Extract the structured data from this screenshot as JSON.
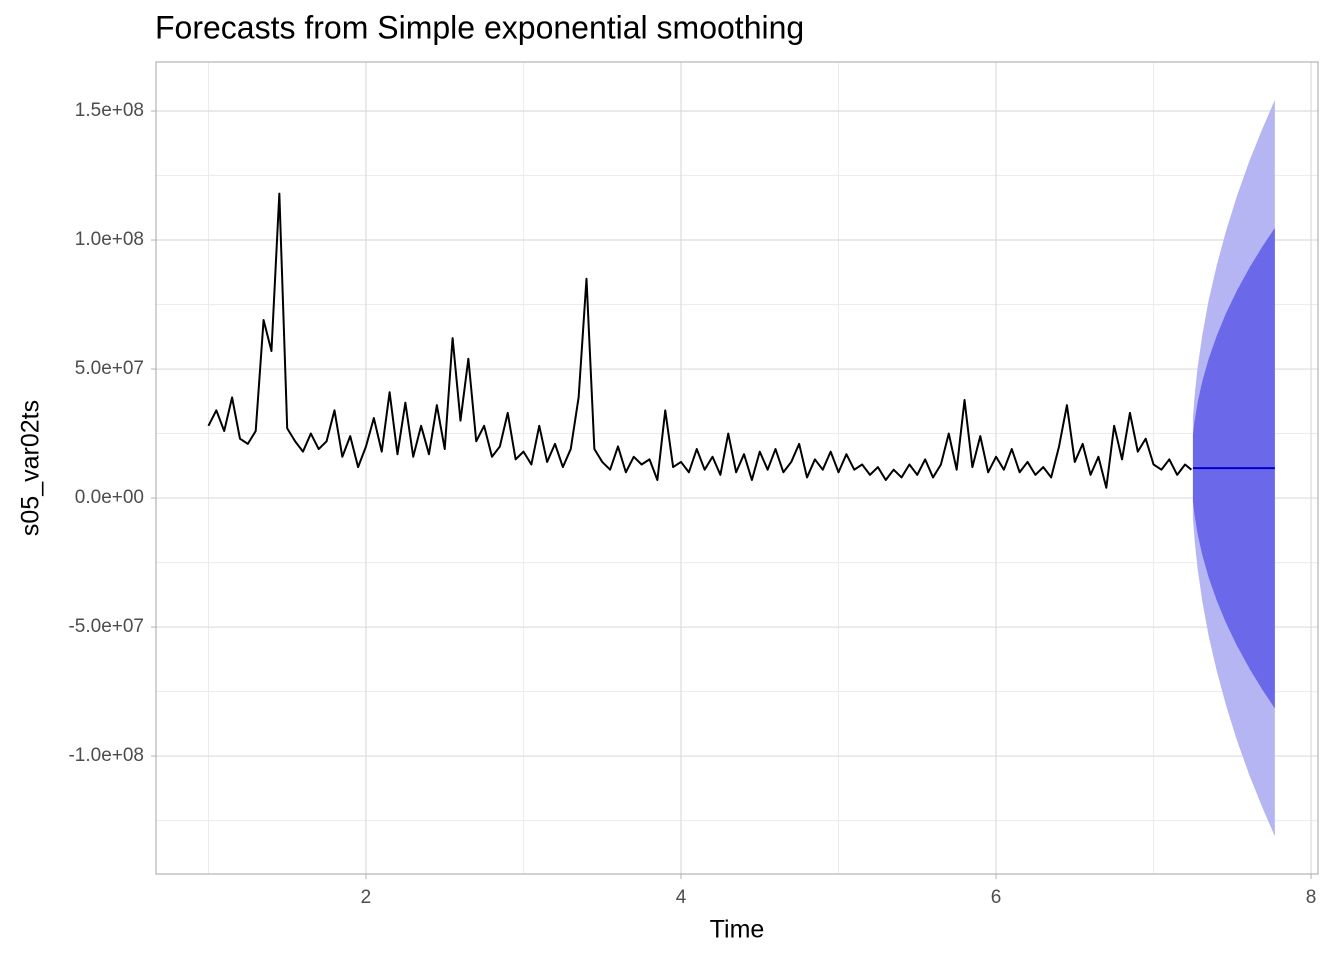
{
  "chart_data": {
    "type": "line",
    "title": "Forecasts from Simple exponential smoothing",
    "xlabel": "Time",
    "ylabel": "s05_var02ts",
    "xlim": [
      0.667,
      8.044
    ],
    "ylim": [
      -145700000,
      169000000
    ],
    "xticks": [
      2,
      4,
      6,
      8
    ],
    "xminor": [
      1,
      3,
      5,
      7
    ],
    "yticks": [
      {
        "value": -100000000,
        "label": "-1.0e+08"
      },
      {
        "value": -50000000,
        "label": "-5.0e+07"
      },
      {
        "value": 0,
        "label": "0.0e+00"
      },
      {
        "value": 50000000,
        "label": "5.0e+07"
      },
      {
        "value": 100000000,
        "label": "1.0e+08"
      },
      {
        "value": 150000000,
        "label": "1.5e+08"
      }
    ],
    "yminor": [
      -125000000,
      -75000000,
      -25000000,
      25000000,
      75000000,
      125000000
    ],
    "grid": true,
    "x": [
      1.0,
      1.05,
      1.1,
      1.15,
      1.2,
      1.25,
      1.3,
      1.35,
      1.4,
      1.45,
      1.5,
      1.55,
      1.6,
      1.65,
      1.7,
      1.75,
      1.8,
      1.85,
      1.9,
      1.95,
      2.0,
      2.05,
      2.1,
      2.15,
      2.2,
      2.25,
      2.3,
      2.35,
      2.4,
      2.45,
      2.5,
      2.55,
      2.6,
      2.65,
      2.7,
      2.75,
      2.8,
      2.85,
      2.9,
      2.95,
      3.0,
      3.05,
      3.1,
      3.15,
      3.2,
      3.25,
      3.3,
      3.35,
      3.4,
      3.45,
      3.5,
      3.55,
      3.6,
      3.65,
      3.7,
      3.75,
      3.8,
      3.85,
      3.9,
      3.95,
      4.0,
      4.05,
      4.1,
      4.15,
      4.2,
      4.25,
      4.3,
      4.35,
      4.4,
      4.45,
      4.5,
      4.55,
      4.6,
      4.65,
      4.7,
      4.75,
      4.8,
      4.85,
      4.9,
      4.95,
      5.0,
      5.05,
      5.1,
      5.15,
      5.2,
      5.25,
      5.3,
      5.35,
      5.4,
      5.45,
      5.5,
      5.55,
      5.6,
      5.65,
      5.7,
      5.75,
      5.8,
      5.85,
      5.9,
      5.95,
      6.0,
      6.05,
      6.1,
      6.15,
      6.2,
      6.25,
      6.3,
      6.35,
      6.4,
      6.45,
      6.5,
      6.55,
      6.6,
      6.65,
      6.7,
      6.75,
      6.8,
      6.85,
      6.9,
      6.95,
      7.0,
      7.05,
      7.1,
      7.15,
      7.2,
      7.24
    ],
    "series": [
      {
        "color": "#000000",
        "values": [
          28000000.0,
          34000000.0,
          26000000.0,
          39000000.0,
          23000000.0,
          21000000.0,
          26000000.0,
          69000000.0,
          57000000.0,
          118000000.0,
          27000000.0,
          22000000.0,
          18000000.0,
          25000000.0,
          19000000.0,
          22000000.0,
          34000000.0,
          16000000.0,
          24000000.0,
          12000000.0,
          20000000.0,
          31000000.0,
          18000000.0,
          41000000.0,
          17000000.0,
          37000000.0,
          16000000.0,
          28000000.0,
          17000000.0,
          36000000.0,
          19000000.0,
          62000000.0,
          30000000.0,
          54000000.0,
          22000000.0,
          28000000.0,
          16000000.0,
          20000000.0,
          33000000.0,
          15000000.0,
          18000000.0,
          13000000.0,
          28000000.0,
          14000000.0,
          21000000.0,
          12000000.0,
          19000000.0,
          39000000.0,
          85000000.0,
          19000000.0,
          14000000.0,
          11000000.0,
          20000000.0,
          10000000.0,
          16000000.0,
          13000000.0,
          15000000.0,
          7000000.0,
          34000000.0,
          12000000.0,
          14000000.0,
          10000000.0,
          19000000.0,
          11000000.0,
          16000000.0,
          9000000.0,
          25000000.0,
          10000000.0,
          17000000.0,
          7000000.0,
          18000000.0,
          11000000.0,
          19000000.0,
          10000000.0,
          14000000.0,
          21000000.0,
          8000000.0,
          15000000.0,
          11000000.0,
          18000000.0,
          10000000.0,
          17000000.0,
          11000000.0,
          13000000.0,
          9000000.0,
          12000000.0,
          7000000.0,
          11000000.0,
          8000000.0,
          13000000.0,
          9000000.0,
          15000000.0,
          8000000.0,
          13000000.0,
          25000000.0,
          11000000.0,
          38000000.0,
          12000000.0,
          24000000.0,
          10000000.0,
          16000000.0,
          11000000.0,
          19000000.0,
          10000000.0,
          14000000.0,
          9000000.0,
          12000000.0,
          8000000.0,
          20000000.0,
          36000000.0,
          14000000.0,
          21000000.0,
          9000000.0,
          16000000.0,
          4000000.0,
          28000000.0,
          15000000.0,
          33000000.0,
          18000000.0,
          23000000.0,
          13000000.0,
          11000000.0,
          15000000.0,
          9000000.0,
          13000000.0,
          11000000.0
        ]
      }
    ],
    "forecast": {
      "color": "#0000cc",
      "fill80": "#6b68ea",
      "fill95": "#b6b5f3",
      "x": [
        7.25,
        7.26,
        7.28,
        7.31,
        7.35,
        7.4,
        7.46,
        7.53,
        7.61,
        7.69,
        7.77
      ],
      "mean": [
        11600000.0,
        11600000.0,
        11600000.0,
        11600000.0,
        11600000.0,
        11600000.0,
        11600000.0,
        11600000.0,
        11600000.0,
        11600000.0,
        11600000.0
      ],
      "lower80": [
        -1200000.0,
        -6500000.0,
        -14000000.0,
        -22200000.0,
        -30800000.0,
        -39500000.0,
        -48400000.0,
        -57300000.0,
        -66200000.0,
        -74200000.0,
        -81500000.0
      ],
      "upper80": [
        24400000.0,
        29700000.0,
        37200000.0,
        45400000.0,
        54000000.0,
        62700000.0,
        71600000.0,
        80500000.0,
        89400000.0,
        97400000.0,
        104700000.0
      ],
      "lower95": [
        -8000000.0,
        -16100000.0,
        -27600000.0,
        -40200000.0,
        -53500000.0,
        -66700000.0,
        -80300000.0,
        -94000000.0,
        -107700000.0,
        -119800000.0,
        -131100000.0
      ],
      "upper95": [
        31200000.0,
        39300000.0,
        50800000.0,
        63400000.0,
        76700000.0,
        89900000.0,
        103500000.0,
        117200000.0,
        130900000.0,
        143000000.0,
        154300000.0
      ]
    }
  }
}
